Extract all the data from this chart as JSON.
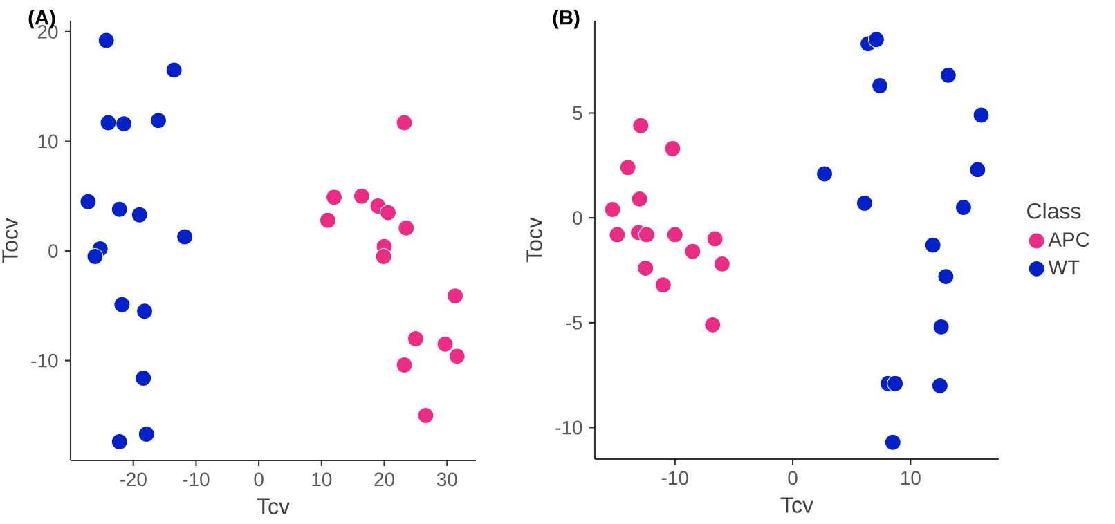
{
  "chart_data": [
    {
      "type": "scatter",
      "xlabel": "Tcv",
      "ylabel": "Tocv",
      "annotations": [
        "(A)"
      ],
      "xlim": [
        -30,
        34.6
      ],
      "ylim": [
        -19.1,
        21
      ],
      "xticks": [
        -20,
        -10,
        0,
        10,
        20,
        30
      ],
      "yticks": [
        -10,
        0,
        10,
        20
      ],
      "marker": "circle",
      "legend": false,
      "series": [
        {
          "color": "#ea2c84",
          "x": [
            23.2,
            12.0,
            11.0,
            16.4,
            19.0,
            20.6,
            23.5,
            20.0,
            19.9,
            31.3,
            25.0,
            29.7,
            31.6,
            23.2,
            26.6
          ],
          "values": [
            11.7,
            4.9,
            2.8,
            5.0,
            4.1,
            3.5,
            2.1,
            0.4,
            -0.5,
            -4.1,
            -8.0,
            -8.5,
            -9.6,
            -10.4,
            -15.0
          ]
        },
        {
          "color": "#0021c8",
          "x": [
            -24.3,
            -13.5,
            -24.0,
            -21.5,
            -16.0,
            -27.2,
            -22.2,
            -19.0,
            -11.8,
            -25.3,
            -26.1,
            -21.8,
            -18.2,
            -18.4,
            -17.9,
            -22.2
          ],
          "values": [
            19.2,
            16.5,
            11.7,
            11.6,
            11.9,
            4.5,
            3.8,
            3.3,
            1.3,
            0.2,
            -0.5,
            -4.9,
            -5.5,
            -11.6,
            -16.7,
            -17.4
          ]
        }
      ]
    },
    {
      "type": "scatter",
      "xlabel": "Tcv",
      "ylabel": "Tocv",
      "annotations": [
        "(B)"
      ],
      "xlim": [
        -16.8,
        17.5
      ],
      "ylim": [
        -11.5,
        9.4
      ],
      "xticks": [
        -10,
        0,
        10
      ],
      "yticks": [
        -10,
        -5,
        0,
        5
      ],
      "marker": "circle",
      "legend": "right",
      "legend_title": "Class",
      "series": [
        {
          "name": "APC",
          "color": "#ea2c84",
          "x": [
            -12.9,
            -10.2,
            -14.0,
            -13.0,
            -15.3,
            -14.9,
            -13.1,
            -12.4,
            -10.0,
            -8.5,
            -6.6,
            -6.0,
            -12.5,
            -11.0,
            -6.8
          ],
          "values": [
            4.4,
            3.3,
            2.4,
            0.9,
            0.4,
            -0.8,
            -0.7,
            -0.8,
            -0.8,
            -1.6,
            -1.0,
            -2.2,
            -2.4,
            -3.2,
            -5.1
          ]
        },
        {
          "name": "WT",
          "color": "#0021c8",
          "x": [
            6.4,
            7.1,
            7.4,
            13.2,
            16.0,
            15.7,
            2.7,
            6.1,
            14.5,
            11.9,
            13.0,
            12.6,
            8.1,
            8.7,
            12.5,
            8.5
          ],
          "values": [
            8.3,
            8.5,
            6.3,
            6.8,
            4.9,
            2.3,
            2.1,
            0.7,
            0.5,
            -1.3,
            -2.8,
            -5.2,
            -7.9,
            -7.9,
            -8.0,
            -10.7
          ]
        }
      ]
    }
  ]
}
